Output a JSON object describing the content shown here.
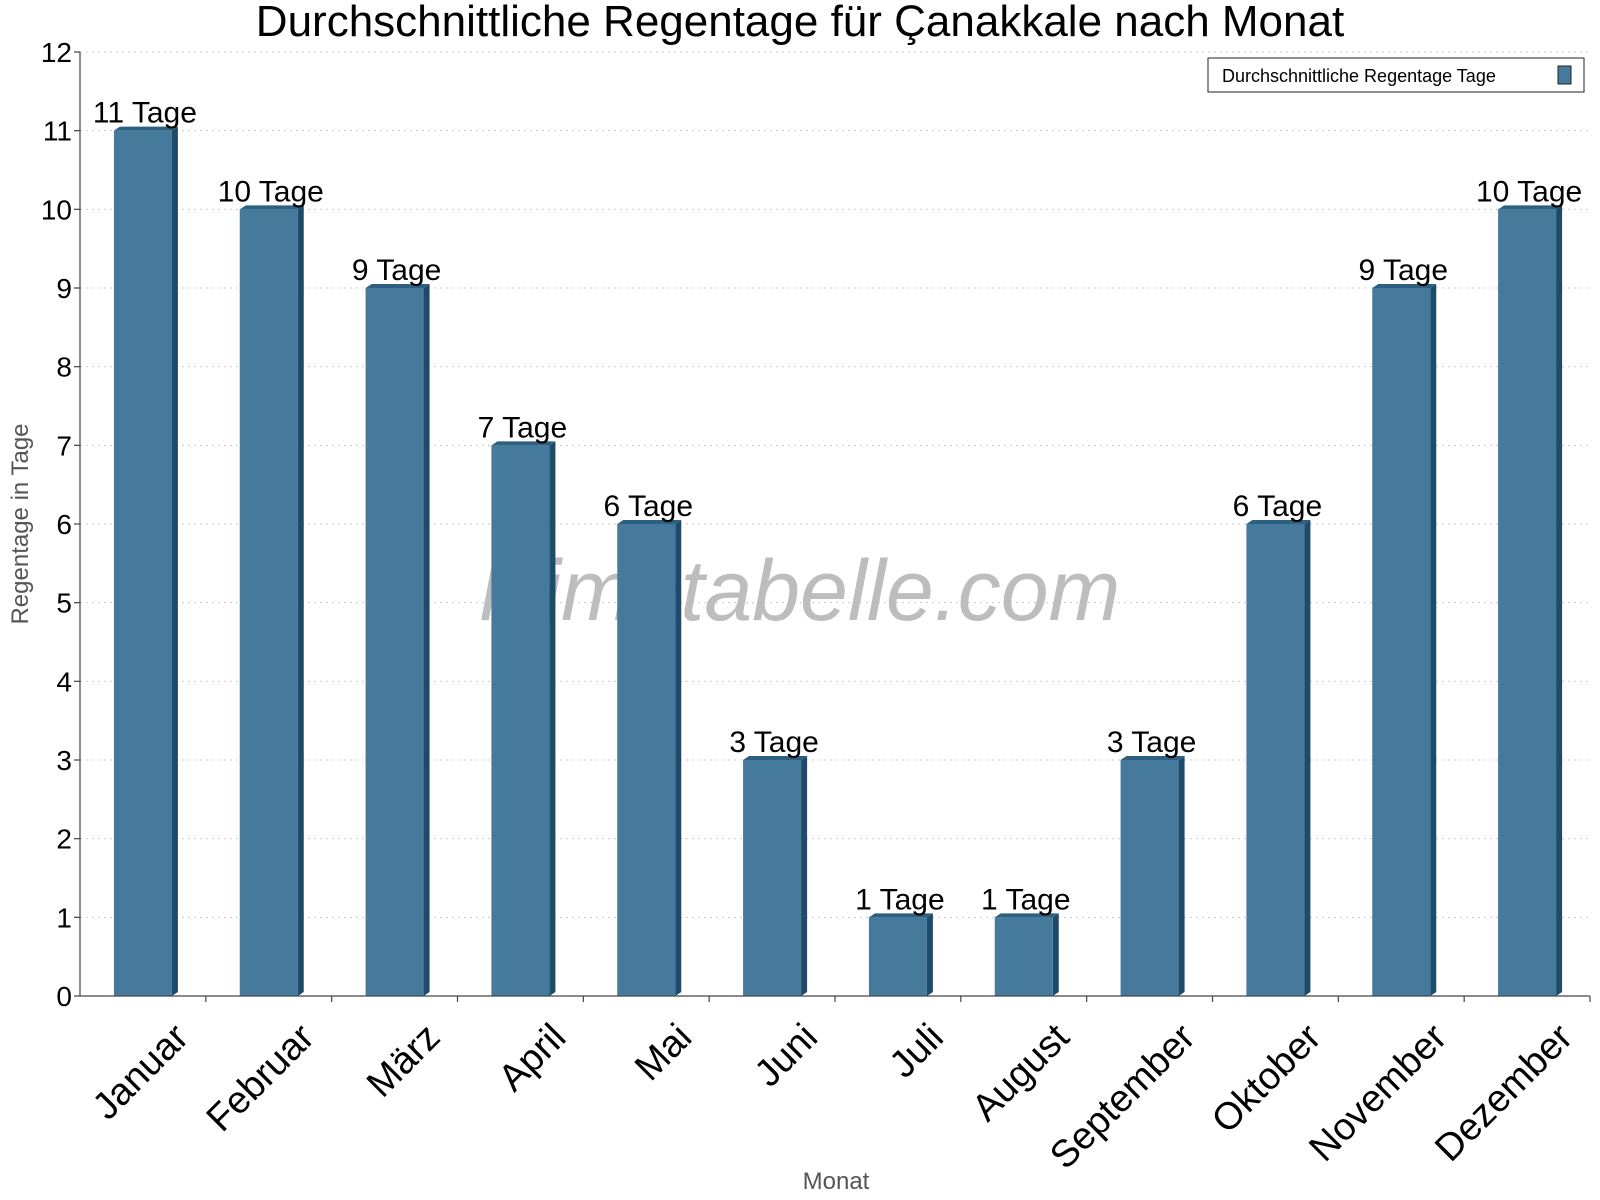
{
  "colors": {
    "bar_front": "#457a9c",
    "bar_side": "#1d4b69",
    "bar_top": "#2d5f80",
    "watermark": "#bdbdbd"
  },
  "watermark": "klimatabelle.com",
  "chart_data": {
    "type": "bar",
    "title": "Durchschnittliche Regentage für Çanakkale nach Monat",
    "xlabel": "Monat",
    "ylabel": "Regentage in Tage",
    "ylim": [
      0,
      12
    ],
    "yticks": [
      0,
      1,
      2,
      3,
      4,
      5,
      6,
      7,
      8,
      9,
      10,
      11,
      12
    ],
    "grid": true,
    "legend_position": "top-right",
    "categories": [
      "Januar",
      "Februar",
      "März",
      "April",
      "Mai",
      "Juni",
      "Juli",
      "August",
      "September",
      "Oktober",
      "November",
      "Dezember"
    ],
    "series": [
      {
        "name": "Durchschnittliche Regentage Tage",
        "values": [
          11,
          10,
          9,
          7,
          6,
          3,
          1,
          1,
          3,
          6,
          9,
          10
        ],
        "data_labels": [
          "11 Tage",
          "10 Tage",
          "9 Tage",
          "7 Tage",
          "6 Tage",
          "3 Tage",
          "1 Tage",
          "1 Tage",
          "3 Tage",
          "6 Tage",
          "9 Tage",
          "10 Tage"
        ]
      }
    ]
  }
}
